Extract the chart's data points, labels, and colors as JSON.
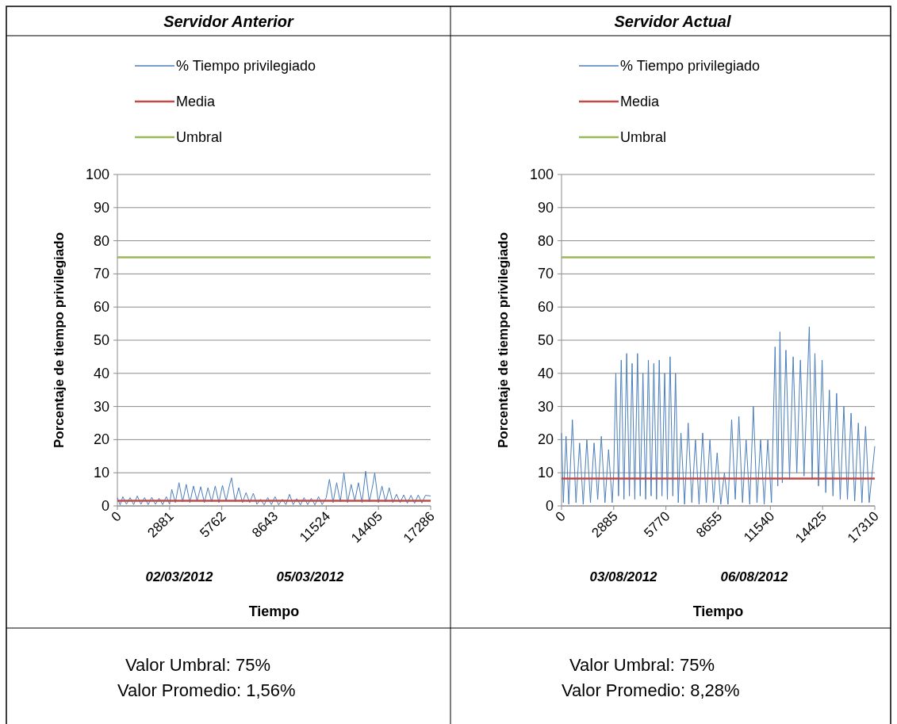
{
  "chart_data": [
    {
      "type": "line",
      "title": "Servidor Anterior",
      "xlabel": "Tiempo",
      "ylabel": "Porcentaje  de tiempo privilegiado",
      "grid": "y",
      "legend": "top",
      "xlim": [
        0,
        17286
      ],
      "xticks": [
        0,
        2881,
        5762,
        8643,
        11524,
        14405,
        17286
      ],
      "ylim": [
        0,
        100
      ],
      "yticks": [
        0,
        10,
        20,
        30,
        40,
        50,
        60,
        70,
        80,
        90,
        100
      ],
      "annotations": [
        "02/03/2012",
        "05/03/2012",
        "Valor Umbral: 75%",
        "Valor Promedio: 1,56%"
      ],
      "series": [
        {
          "name": "% Tiempo privilegiado",
          "color": "#4a7ebb",
          "x": [
            0,
            150,
            300,
            500,
            700,
            900,
            1100,
            1300,
            1500,
            1700,
            1900,
            2100,
            2300,
            2500,
            2700,
            2881,
            3000,
            3200,
            3400,
            3600,
            3800,
            4000,
            4200,
            4400,
            4600,
            4800,
            5000,
            5200,
            5400,
            5600,
            5800,
            6000,
            6200,
            6300,
            6500,
            6700,
            6900,
            7100,
            7300,
            7500,
            7700,
            7900,
            8100,
            8300,
            8500,
            8700,
            8900,
            9100,
            9300,
            9500,
            9700,
            9900,
            10100,
            10300,
            10500,
            10700,
            10900,
            11100,
            11300,
            11524,
            11700,
            11900,
            12100,
            12300,
            12500,
            12700,
            12900,
            13100,
            13300,
            13500,
            13700,
            13900,
            14100,
            14200,
            14400,
            14600,
            14800,
            15000,
            15200,
            15400,
            15600,
            15800,
            16000,
            16200,
            16400,
            16600,
            16800,
            17000,
            17286
          ],
          "values": [
            2.5,
            0.3,
            2.8,
            0.5,
            2.5,
            0.4,
            3,
            0.5,
            2.5,
            0.4,
            2.6,
            0.5,
            2.3,
            0.4,
            2.8,
            0.5,
            5,
            1,
            7,
            1.2,
            6.5,
            1,
            6,
            1.5,
            5.8,
            1,
            5.5,
            1.2,
            6,
            1,
            6.2,
            1.5,
            6.5,
            8.5,
            1.3,
            5.5,
            1,
            4,
            1,
            3.8,
            0.5,
            2,
            0.3,
            2.5,
            0.4,
            2.8,
            0.3,
            2,
            0.4,
            3.5,
            0.4,
            2.2,
            0.3,
            2.5,
            0.4,
            2.3,
            0.3,
            2.8,
            0.4,
            2.5,
            8,
            1,
            7,
            1.2,
            10,
            1,
            6.5,
            1.5,
            7,
            1,
            10.5,
            1.2,
            6.5,
            10,
            1,
            6,
            1.2,
            5.5,
            1,
            3.5,
            1,
            3.3,
            0.8,
            3.2,
            0.8,
            3.3,
            0.9,
            3.2,
            3
          ]
        },
        {
          "name": "Media",
          "color": "#be4b48",
          "x": [
            0,
            17286
          ],
          "values": [
            1.56,
            1.56
          ]
        },
        {
          "name": "Umbral",
          "color": "#98b954",
          "x": [
            0,
            17286
          ],
          "values": [
            75,
            75
          ]
        }
      ]
    },
    {
      "type": "line",
      "title": "Servidor Actual",
      "xlabel": "Tiempo",
      "ylabel": "Porcentaje  de tiempo privilegiado",
      "grid": "y",
      "legend": "top",
      "xlim": [
        0,
        17310
      ],
      "xticks": [
        0,
        2885,
        5770,
        8655,
        11540,
        14425,
        17310
      ],
      "ylim": [
        0,
        100
      ],
      "yticks": [
        0,
        10,
        20,
        30,
        40,
        50,
        60,
        70,
        80,
        90,
        100
      ],
      "annotations": [
        "03/08/2012",
        "06/08/2012",
        "Valor Umbral: 75%",
        "Valor Promedio: 8,28%"
      ],
      "series": [
        {
          "name": "% Tiempo privilegiado",
          "color": "#4a7ebb",
          "x": [
            0,
            100,
            250,
            400,
            600,
            800,
            1000,
            1200,
            1400,
            1600,
            1800,
            2000,
            2200,
            2400,
            2600,
            2800,
            2885,
            3000,
            3150,
            3300,
            3450,
            3600,
            3750,
            3900,
            4050,
            4200,
            4350,
            4500,
            4650,
            4800,
            4950,
            5100,
            5250,
            5400,
            5550,
            5700,
            5850,
            6000,
            6150,
            6300,
            6450,
            6600,
            6800,
            7000,
            7200,
            7400,
            7600,
            7800,
            8000,
            8200,
            8400,
            8600,
            8800,
            9000,
            9200,
            9400,
            9600,
            9800,
            10000,
            10200,
            10400,
            10600,
            10800,
            11000,
            11200,
            11400,
            11600,
            11800,
            11950,
            12070,
            12200,
            12400,
            12600,
            12800,
            13000,
            13200,
            13400,
            13690,
            13850,
            14000,
            14200,
            14400,
            14600,
            14800,
            15000,
            15200,
            15400,
            15600,
            15800,
            16000,
            16200,
            16400,
            16600,
            16800,
            17000,
            17310
          ],
          "values": [
            22,
            1,
            21,
            0.5,
            26,
            1,
            19,
            0.5,
            20,
            1,
            19,
            2,
            21,
            1,
            17,
            1,
            10,
            40,
            3,
            44,
            2,
            46,
            3,
            43,
            2,
            46,
            3,
            40,
            2,
            44,
            3,
            43,
            2,
            44,
            3,
            40,
            2,
            45,
            3,
            40,
            1,
            22,
            0.5,
            25,
            1,
            20,
            0.5,
            22,
            1,
            20,
            1,
            16,
            0.5,
            10,
            0.5,
            26,
            2,
            27,
            1,
            20,
            0.5,
            30,
            1,
            20,
            0.5,
            20,
            1,
            48,
            6,
            52.5,
            7,
            47,
            8,
            45,
            10,
            44,
            9,
            54,
            8,
            46,
            6,
            44,
            4,
            35,
            3,
            34,
            2,
            30,
            2,
            28,
            1.5,
            25,
            1,
            24,
            1,
            18
          ]
        },
        {
          "name": "Media",
          "color": "#be4b48",
          "x": [
            0,
            17310
          ],
          "values": [
            8.28,
            8.28
          ]
        },
        {
          "name": "Umbral",
          "color": "#98b954",
          "x": [
            0,
            17310
          ],
          "values": [
            75,
            75
          ]
        }
      ]
    }
  ]
}
